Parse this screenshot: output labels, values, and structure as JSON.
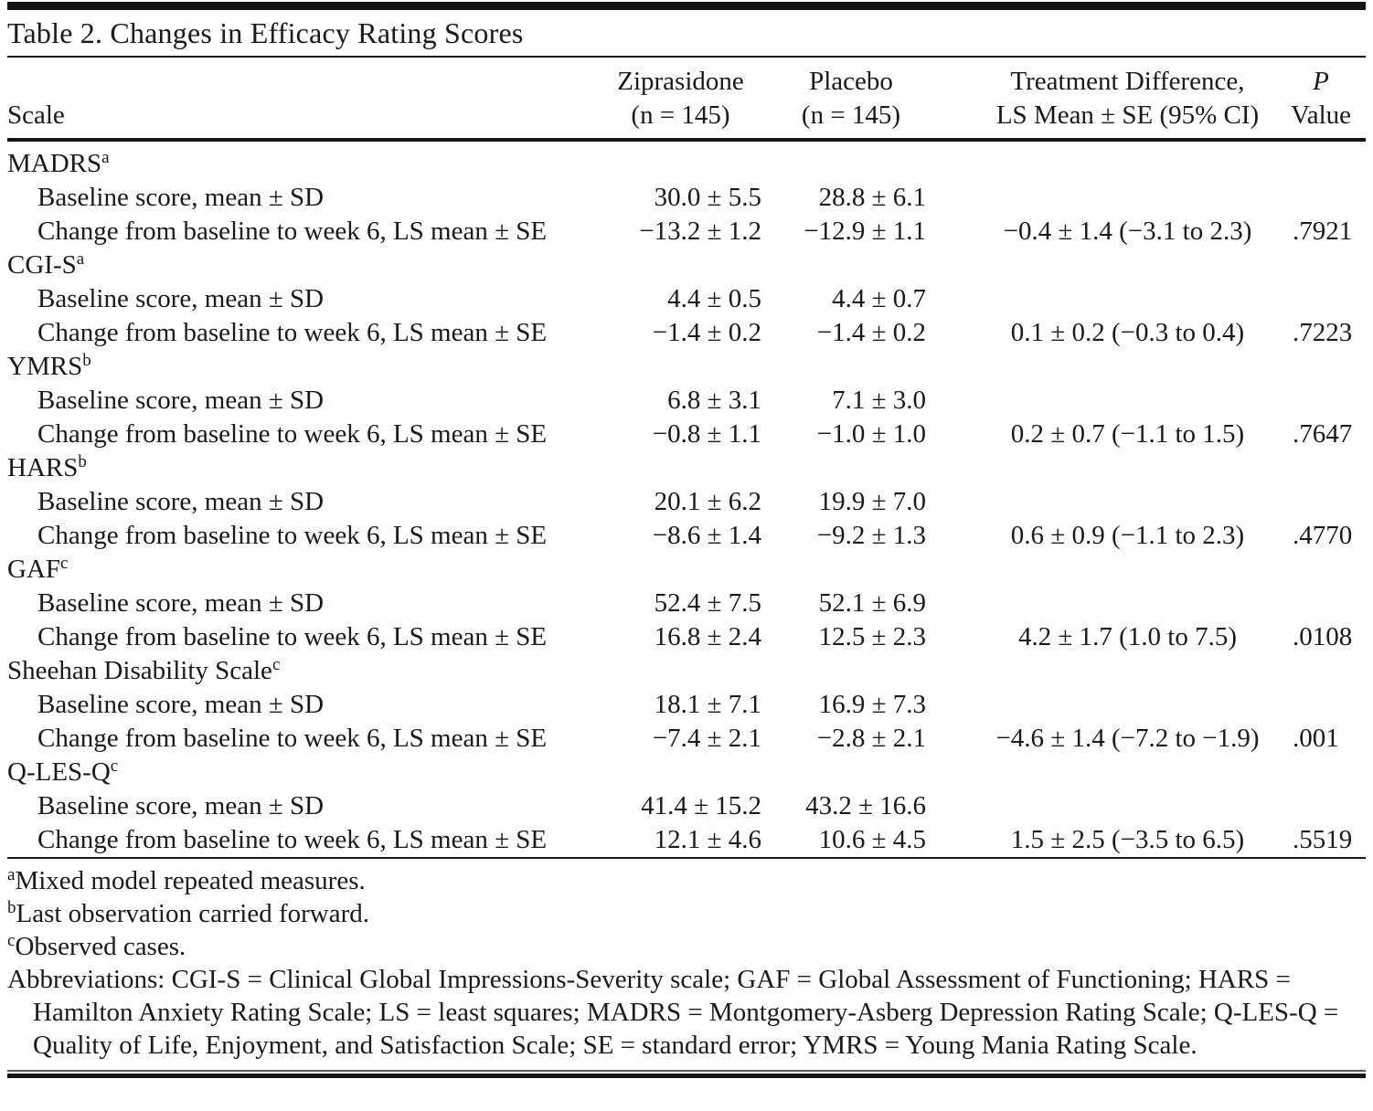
{
  "colors": {
    "text": "#1a1a1a",
    "background": "#ffffff",
    "rules": "#151515"
  },
  "table": {
    "title": "Table 2. Changes in Efficacy Rating Scores",
    "columns": {
      "scale": "Scale",
      "zip_line1": "Ziprasidone",
      "zip_line2": "(n = 145)",
      "pbo_line1": "Placebo",
      "pbo_line2": "(n = 145)",
      "diff_line1": "Treatment Difference,",
      "diff_line2": "LS Mean ± SE (95% CI)",
      "p_line1": "P",
      "p_line2": "Value"
    },
    "row_labels": {
      "baseline": "Baseline score, mean ± SD",
      "change": "Change from baseline to week 6, LS mean ± SE"
    },
    "sections": [
      {
        "name": "MADRS",
        "marker": "a",
        "rows": [
          {
            "label": "Baseline score, mean ± SD",
            "zip": "30.0 ± 5.5",
            "pbo": "28.8 ± 6.1",
            "diff": "",
            "p": ""
          },
          {
            "label": "Change from baseline to week 6, LS mean ± SE",
            "zip": "−13.2 ± 1.2",
            "pbo": "−12.9 ± 1.1",
            "diff": "−0.4 ± 1.4 (−3.1 to 2.3)",
            "p": ".7921"
          }
        ]
      },
      {
        "name": "CGI-S",
        "marker": "a",
        "rows": [
          {
            "label": "Baseline score, mean ± SD",
            "zip": "4.4 ± 0.5",
            "pbo": "4.4 ± 0.7",
            "diff": "",
            "p": ""
          },
          {
            "label": "Change from baseline to week 6, LS mean ± SE",
            "zip": "−1.4 ± 0.2",
            "pbo": "−1.4 ± 0.2",
            "diff": "0.1 ± 0.2 (−0.3 to 0.4)",
            "p": ".7223"
          }
        ]
      },
      {
        "name": "YMRS",
        "marker": "b",
        "rows": [
          {
            "label": "Baseline score, mean ± SD",
            "zip": "6.8 ± 3.1",
            "pbo": "7.1 ± 3.0",
            "diff": "",
            "p": ""
          },
          {
            "label": "Change from baseline to week 6, LS mean ± SE",
            "zip": "−0.8 ± 1.1",
            "pbo": "−1.0 ± 1.0",
            "diff": "0.2 ± 0.7 (−1.1 to 1.5)",
            "p": ".7647"
          }
        ]
      },
      {
        "name": "HARS",
        "marker": "b",
        "rows": [
          {
            "label": "Baseline score, mean ± SD",
            "zip": "20.1 ± 6.2",
            "pbo": "19.9 ± 7.0",
            "diff": "",
            "p": ""
          },
          {
            "label": "Change from baseline to week 6, LS mean ± SE",
            "zip": "−8.6 ± 1.4",
            "pbo": "−9.2 ± 1.3",
            "diff": "0.6 ± 0.9 (−1.1 to 2.3)",
            "p": ".4770"
          }
        ]
      },
      {
        "name": "GAF",
        "marker": "c",
        "rows": [
          {
            "label": "Baseline score, mean ± SD",
            "zip": "52.4 ± 7.5",
            "pbo": "52.1 ± 6.9",
            "diff": "",
            "p": ""
          },
          {
            "label": "Change from baseline to week 6, LS mean ± SE",
            "zip": "16.8 ± 2.4",
            "pbo": "12.5 ± 2.3",
            "diff": "4.2 ± 1.7 (1.0 to 7.5)",
            "p": ".0108"
          }
        ]
      },
      {
        "name": "Sheehan Disability Scale",
        "marker": "c",
        "rows": [
          {
            "label": "Baseline score, mean ± SD",
            "zip": "18.1 ± 7.1",
            "pbo": "16.9 ± 7.3",
            "diff": "",
            "p": ""
          },
          {
            "label": "Change from baseline to week 6, LS mean ± SE",
            "zip": "−7.4 ± 2.1",
            "pbo": "−2.8 ± 2.1",
            "diff": "−4.6 ± 1.4 (−7.2 to −1.9)",
            "p": ".001"
          }
        ]
      },
      {
        "name": "Q-LES-Q",
        "marker": "c",
        "rows": [
          {
            "label": "Baseline score, mean ± SD",
            "zip": "41.4 ± 15.2",
            "pbo": "43.2 ± 16.6",
            "diff": "",
            "p": ""
          },
          {
            "label": "Change from baseline to week 6, LS mean ± SE",
            "zip": "12.1 ± 4.6",
            "pbo": "10.6 ± 4.5",
            "diff": "1.5 ± 2.5 (−3.5 to 6.5)",
            "p": ".5519"
          }
        ]
      }
    ],
    "footnotes": [
      {
        "marker": "a",
        "text": "Mixed model repeated measures."
      },
      {
        "marker": "b",
        "text": "Last observation carried forward."
      },
      {
        "marker": "c",
        "text": "Observed cases."
      }
    ],
    "abbreviations": "Abbreviations: CGI-S = Clinical Global Impressions-Severity scale; GAF = Global Assessment of Functioning; HARS = Hamilton Anxiety Rating Scale; LS = least squares; MADRS = Montgomery-Asberg Depression Rating Scale; Q-LES-Q = Quality of Life, Enjoyment, and Satisfaction Scale; SE = standard error; YMRS = Young Mania Rating Scale."
  }
}
